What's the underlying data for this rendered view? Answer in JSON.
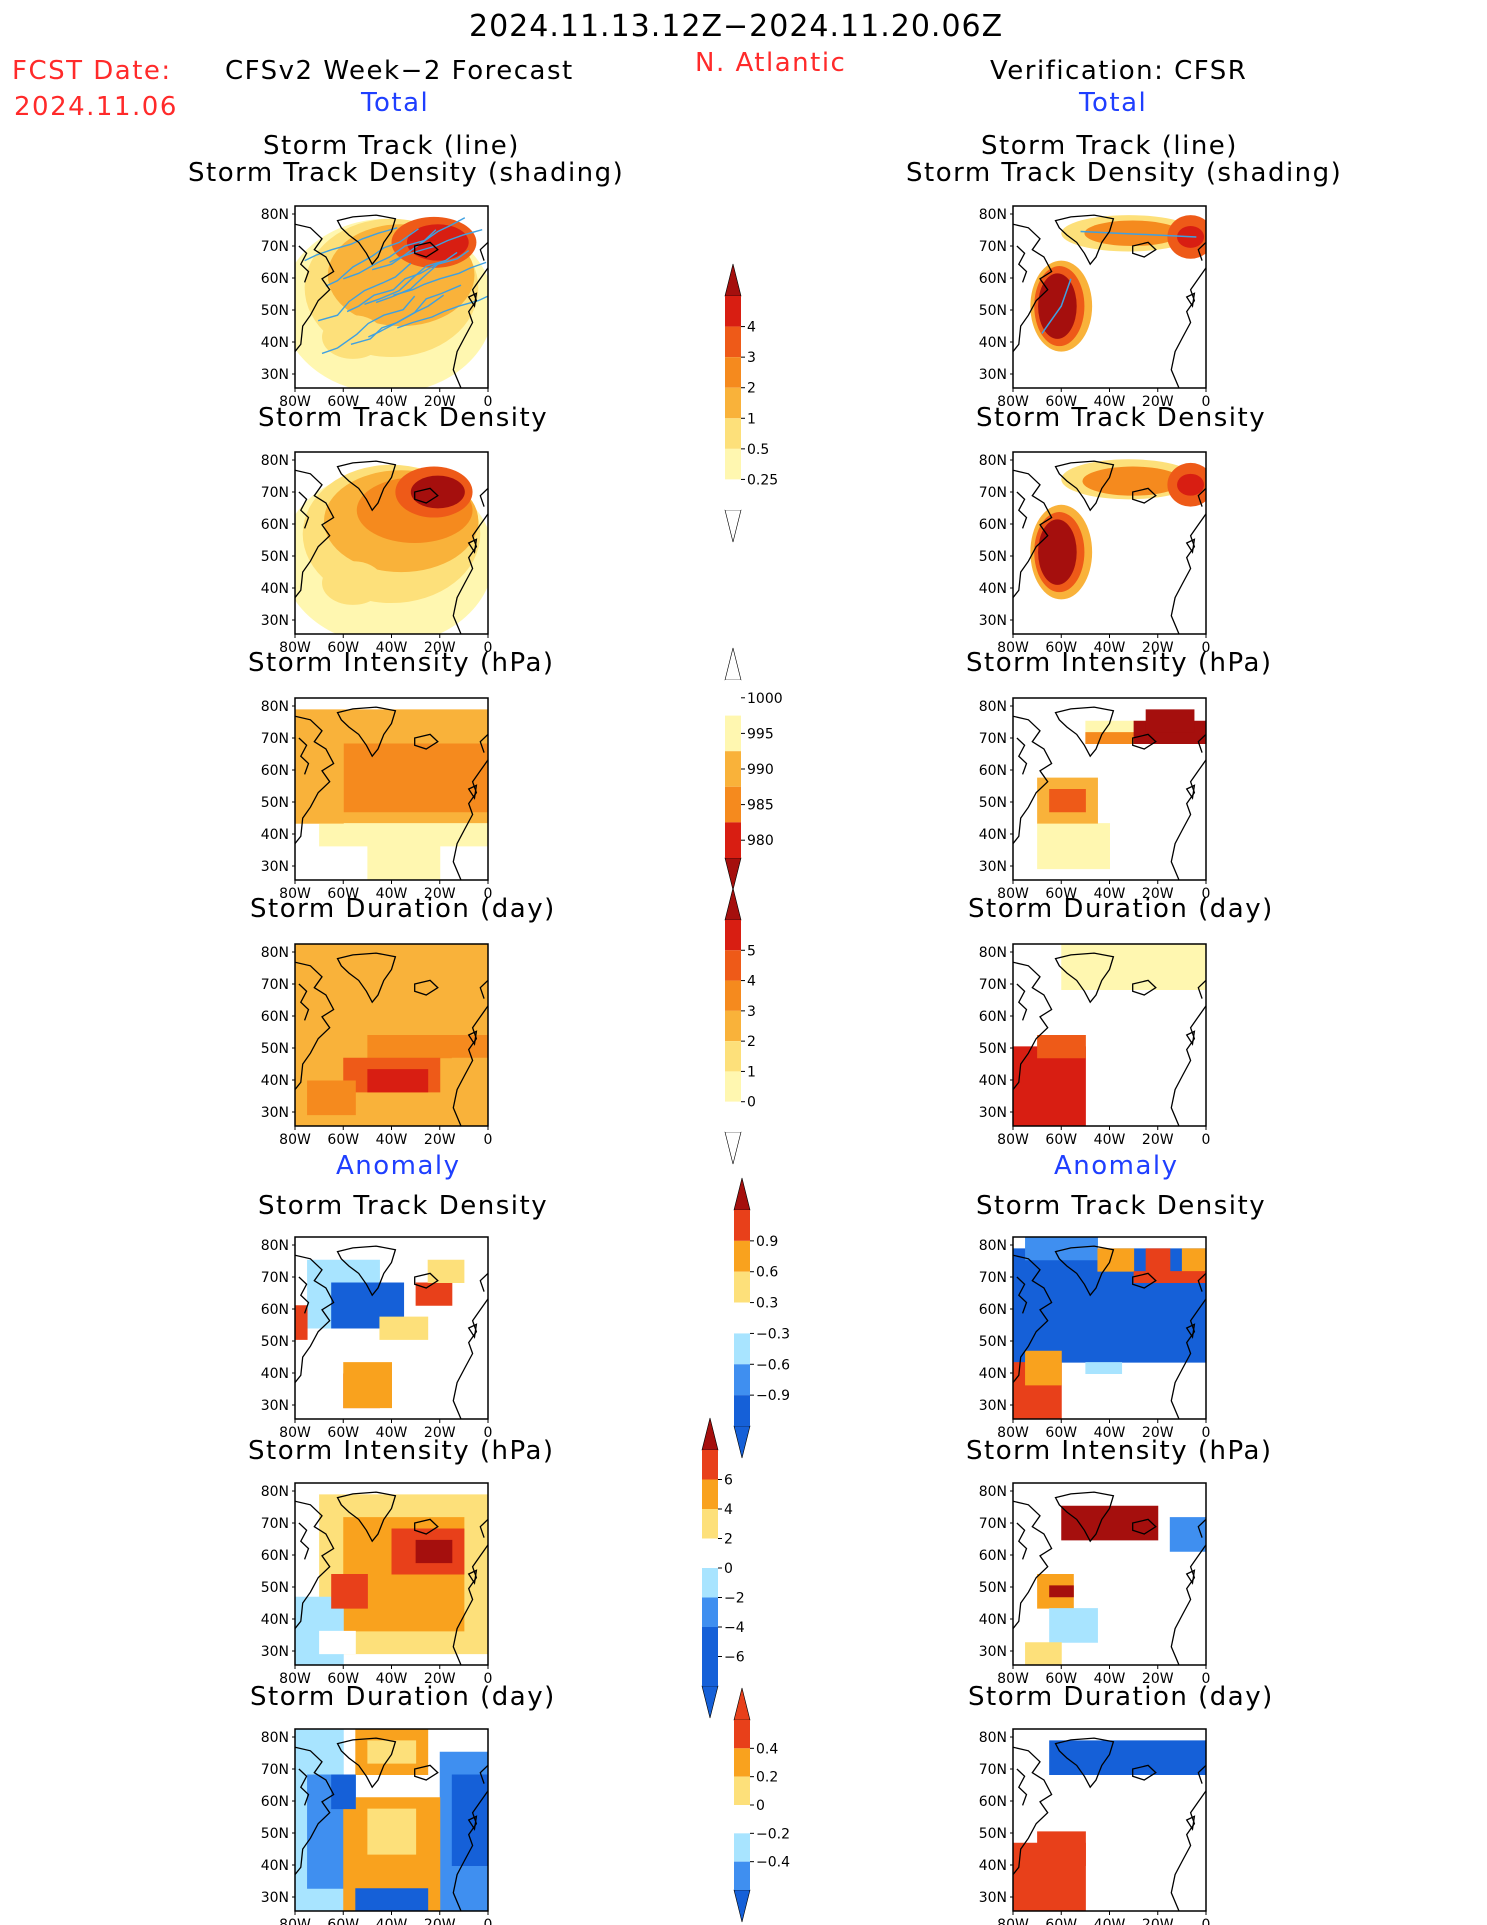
{
  "header": {
    "period": "2024.11.13.12Z−2024.11.20.06Z",
    "fcst_label": "FCST Date:",
    "fcst_date": "2024.11.06",
    "left_title": "CFSv2 Week−2 Forecast",
    "region": "N. Atlantic",
    "right_title": "Verification: CFSR",
    "total_label": "Total",
    "anomaly_label": "Anomaly"
  },
  "panel_titles": {
    "track_line": "Storm Track (line)",
    "track_shading": "Storm Track Density (shading)",
    "density": "Storm Track Density",
    "intensity": "Storm Intensity (hPa)",
    "duration": "Storm Duration (day)"
  },
  "axes": {
    "lat_labels": [
      "80N",
      "70N",
      "60N",
      "50N",
      "40N",
      "30N"
    ],
    "lon_labels": [
      "80W",
      "60W",
      "40W",
      "20W",
      "0"
    ]
  },
  "colorbars": {
    "density_total": [
      "4",
      "3",
      "2",
      "1",
      "0.5",
      "0.25"
    ],
    "intensity_total": [
      "1000",
      "995",
      "990",
      "985",
      "980"
    ],
    "duration_total": [
      "5",
      "4",
      "3",
      "2",
      "1",
      "0"
    ],
    "density_anom": [
      "0.9",
      "0.6",
      "0.3",
      "−0.3",
      "−0.6",
      "−0.9"
    ],
    "intensity_anom": [
      "6",
      "4",
      "2",
      "0",
      "−2",
      "−4",
      "−6"
    ],
    "duration_anom": [
      "0.4",
      "0.2",
      "0",
      "−0.2",
      "−0.4"
    ]
  },
  "colors": {
    "title_red": "#ff2a2a",
    "label_blue": "#1f3fff",
    "warm_scale": [
      "#fff7b0",
      "#fde07a",
      "#f9b23a",
      "#f58a1e",
      "#ee5a18",
      "#d81e12",
      "#a50f0d"
    ],
    "anom_scale": [
      "#1560d8",
      "#3f8ff0",
      "#a8e4ff",
      "#ffffff",
      "#fde07a",
      "#f9a21e",
      "#e8401a",
      "#a50f0d"
    ],
    "track_line": "#3fa0e0"
  }
}
